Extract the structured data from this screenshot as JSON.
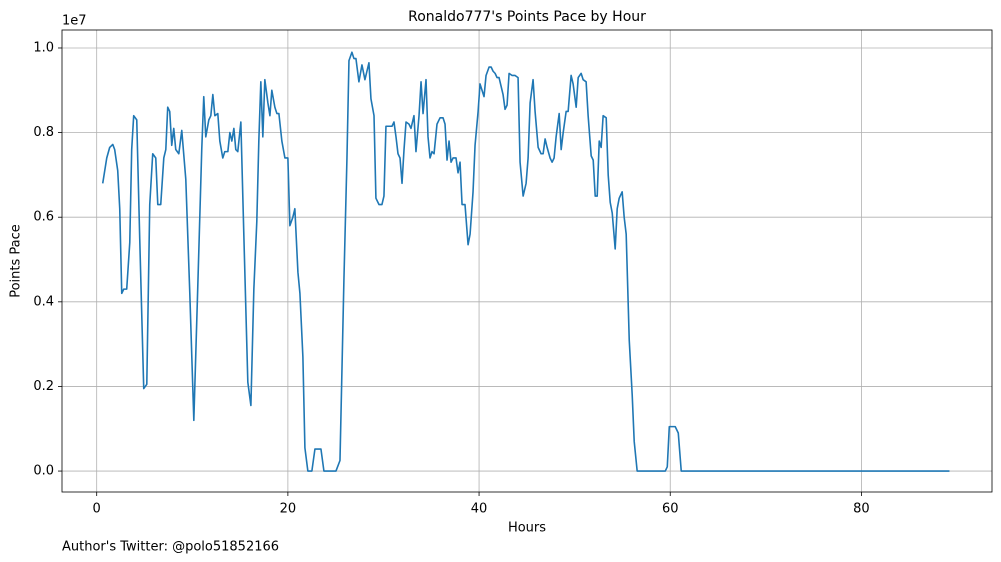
{
  "chart_data": {
    "type": "line",
    "title": "Ronaldo777's Points Pace by Hour",
    "x_label": "Hours",
    "y_label": "Points Pace",
    "y_offset_label": "1e7",
    "footnote": "Author's Twitter: @polo51852166",
    "color": "#1f77b4",
    "grid": true,
    "xlim": [
      -3.63,
      93.66
    ],
    "ylim": [
      -495000,
      10425000
    ],
    "xticks": [
      0,
      20,
      40,
      60,
      80
    ],
    "yticks": [
      {
        "value": 0,
        "label": "0.0"
      },
      {
        "value": 2000000,
        "label": "0.2"
      },
      {
        "value": 4000000,
        "label": "0.4"
      },
      {
        "value": 6000000,
        "label": "0.6"
      },
      {
        "value": 8000000,
        "label": "0.8"
      },
      {
        "value": 10000000,
        "label": "1.0"
      }
    ],
    "x": [
      0.63,
      1.05,
      1.36,
      1.68,
      1.88,
      2.2,
      2.41,
      2.62,
      2.83,
      3.14,
      3.46,
      3.66,
      3.87,
      4.19,
      4.5,
      4.92,
      5.24,
      5.55,
      5.86,
      6.18,
      6.39,
      6.7,
      7.02,
      7.23,
      7.43,
      7.64,
      7.85,
      8.06,
      8.27,
      8.59,
      8.9,
      9.32,
      9.74,
      10.16,
      10.58,
      10.99,
      11.2,
      11.41,
      11.73,
      11.94,
      12.15,
      12.36,
      12.67,
      12.88,
      13.19,
      13.4,
      13.72,
      13.93,
      14.14,
      14.35,
      14.55,
      14.76,
      15.08,
      15.39,
      15.81,
      16.13,
      16.44,
      16.75,
      16.96,
      17.17,
      17.38,
      17.59,
      17.91,
      18.12,
      18.32,
      18.64,
      18.85,
      19.06,
      19.37,
      19.69,
      20.0,
      20.21,
      20.52,
      20.73,
      21.05,
      21.26,
      21.57,
      21.78,
      22.09,
      22.51,
      22.83,
      23.14,
      23.46,
      23.77,
      24.4,
      25.03,
      25.45,
      25.86,
      26.18,
      26.39,
      26.7,
      26.91,
      27.12,
      27.43,
      27.75,
      28.06,
      28.27,
      28.48,
      28.69,
      29.01,
      29.21,
      29.53,
      29.84,
      30.05,
      30.26,
      30.68,
      30.89,
      31.1,
      31.31,
      31.52,
      31.73,
      31.94,
      32.15,
      32.36,
      32.67,
      32.88,
      33.19,
      33.4,
      33.72,
      33.93,
      34.14,
      34.45,
      34.66,
      34.87,
      35.08,
      35.29,
      35.6,
      35.92,
      36.23,
      36.44,
      36.65,
      36.86,
      37.07,
      37.28,
      37.59,
      37.8,
      38.01,
      38.22,
      38.53,
      38.85,
      39.06,
      39.37,
      39.58,
      39.9,
      40.1,
      40.31,
      40.52,
      40.73,
      41.05,
      41.26,
      41.47,
      41.68,
      41.88,
      42.09,
      42.3,
      42.51,
      42.72,
      42.93,
      43.14,
      43.46,
      43.77,
      44.08,
      44.29,
      44.61,
      44.92,
      45.13,
      45.34,
      45.65,
      45.86,
      46.18,
      46.49,
      46.7,
      46.91,
      47.12,
      47.43,
      47.64,
      47.85,
      48.06,
      48.38,
      48.59,
      48.8,
      49.11,
      49.32,
      49.63,
      49.84,
      50.16,
      50.37,
      50.68,
      50.89,
      51.2,
      51.41,
      51.73,
      51.94,
      52.15,
      52.36,
      52.57,
      52.77,
      52.98,
      53.3,
      53.51,
      53.72,
      53.93,
      54.24,
      54.45,
      54.66,
      54.97,
      55.18,
      55.39,
      55.71,
      56.02,
      56.23,
      56.54,
      59.48,
      59.69,
      59.9,
      60.21,
      60.52,
      60.84,
      61.15,
      89.21
    ],
    "values": [
      6800000,
      7400000,
      7650000,
      7720000,
      7600000,
      7100000,
      6200000,
      4200000,
      4300000,
      4300000,
      5400000,
      7600000,
      8400000,
      8300000,
      5500000,
      1950000,
      2050000,
      6300000,
      7500000,
      7400000,
      6300000,
      6300000,
      7400000,
      7600000,
      8600000,
      8500000,
      7700000,
      8100000,
      7600000,
      7500000,
      8050000,
      6900000,
      4200000,
      1200000,
      4400000,
      7600000,
      8850000,
      7900000,
      8300000,
      8400000,
      8900000,
      8400000,
      8450000,
      7800000,
      7400000,
      7550000,
      7550000,
      8000000,
      7800000,
      8100000,
      7600000,
      7550000,
      8250000,
      5600000,
      2100000,
      1550000,
      4300000,
      5900000,
      7800000,
      9200000,
      7900000,
      9250000,
      8700000,
      8400000,
      9000000,
      8600000,
      8450000,
      8450000,
      7800000,
      7400000,
      7400000,
      5800000,
      6000000,
      6200000,
      4700000,
      4200000,
      2700000,
      550000,
      0,
      0,
      520000,
      520000,
      520000,
      0,
      0,
      0,
      250000,
      4500000,
      7400000,
      9700000,
      9900000,
      9750000,
      9750000,
      9200000,
      9600000,
      9250000,
      9450000,
      9650000,
      8800000,
      8400000,
      6450000,
      6300000,
      6300000,
      6500000,
      8150000,
      8150000,
      8150000,
      8250000,
      7900000,
      7500000,
      7400000,
      6800000,
      7600000,
      8250000,
      8200000,
      8100000,
      8400000,
      7550000,
      8400000,
      9200000,
      8450000,
      9250000,
      7900000,
      7400000,
      7550000,
      7500000,
      8200000,
      8350000,
      8350000,
      8200000,
      7350000,
      7800000,
      7300000,
      7400000,
      7400000,
      7050000,
      7300000,
      6300000,
      6300000,
      5350000,
      5600000,
      6600000,
      7700000,
      8500000,
      9150000,
      9000000,
      8850000,
      9350000,
      9550000,
      9550000,
      9450000,
      9400000,
      9300000,
      9300000,
      9100000,
      8900000,
      8550000,
      8650000,
      9400000,
      9350000,
      9350000,
      9300000,
      7300000,
      6500000,
      6800000,
      7400000,
      8700000,
      9250000,
      8500000,
      7650000,
      7500000,
      7500000,
      7850000,
      7650000,
      7400000,
      7300000,
      7400000,
      7900000,
      8450000,
      7600000,
      8000000,
      8500000,
      8500000,
      9350000,
      9150000,
      8600000,
      9300000,
      9400000,
      9250000,
      9200000,
      8400000,
      7450000,
      7350000,
      6500000,
      6500000,
      7800000,
      7650000,
      8400000,
      8350000,
      7000000,
      6350000,
      6100000,
      5250000,
      6200000,
      6450000,
      6600000,
      6000000,
      5600000,
      3100000,
      1800000,
      700000,
      0,
      0,
      100000,
      1050000,
      1050000,
      1050000,
      900000,
      0,
      0
    ]
  }
}
